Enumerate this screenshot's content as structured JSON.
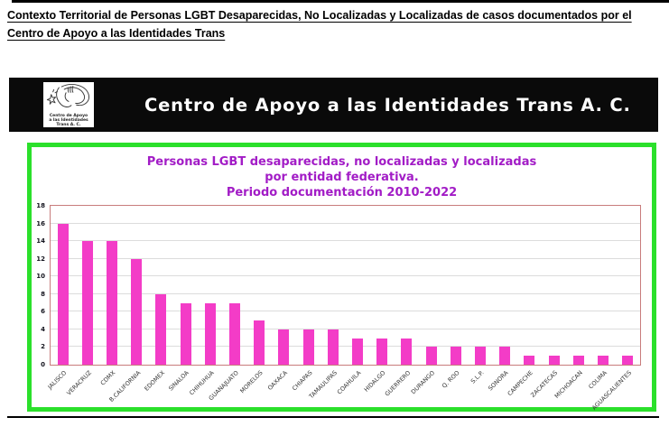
{
  "document": {
    "title_line1": "Contexto Territorial de Personas LGBT Desaparecidas, No Localizadas y Localizadas de casos documentados por el",
    "title_line2": "Centro de Apoyo a las Identidades Trans"
  },
  "banner": {
    "org_name": "Centro de Apoyo a las Identidades Trans A. C.",
    "logo_caption_line1": "Centro de Apoyo",
    "logo_caption_line2": "a las Identidades Trans A. C.",
    "background": "#0A0A0A",
    "text_color": "#FFFFFF"
  },
  "chart_frame": {
    "border_color": "#2BE02B"
  },
  "chart_data": {
    "type": "bar",
    "title_lines": [
      "Personas LGBT desaparecidas, no localizadas y localizadas",
      "por entidad federativa.",
      "Periodo documentación 2010-2022"
    ],
    "title_color": "#A21CC6",
    "categories": [
      "JALISCO",
      "VERACRUZ",
      "CDMX",
      "B.CALIFORNIA",
      "EDOMEX",
      "SINALOA",
      "CHIHUHUA",
      "GUANAJUATO",
      "MORELOS",
      "OAXACA",
      "CHIAPAS",
      "TAMAULIPAS",
      "COAHUILA",
      "HIDALGO",
      "GUERRERO",
      "DURANGO",
      "Q. ROO",
      "S.L.P.",
      "SONORA",
      "CAMPECHE",
      "ZACATECAS",
      "MICHOACAN",
      "COLIMA",
      "AGUASCALIENTES"
    ],
    "values": [
      16,
      14,
      14,
      12,
      8,
      7,
      7,
      7,
      5,
      4,
      4,
      4,
      3,
      3,
      3,
      2,
      2,
      2,
      2,
      1,
      1,
      1,
      1,
      1
    ],
    "xlabel": "",
    "ylabel": "",
    "ylim": [
      0,
      18
    ],
    "ytick_step": 2,
    "yticks": [
      0,
      2,
      4,
      6,
      8,
      10,
      12,
      14,
      16,
      18
    ],
    "grid": "on",
    "legend": "none",
    "bar_color": "#F33CC7",
    "plot_border_color": "#C87C7C",
    "gridline_color": "#DCDCDC"
  }
}
